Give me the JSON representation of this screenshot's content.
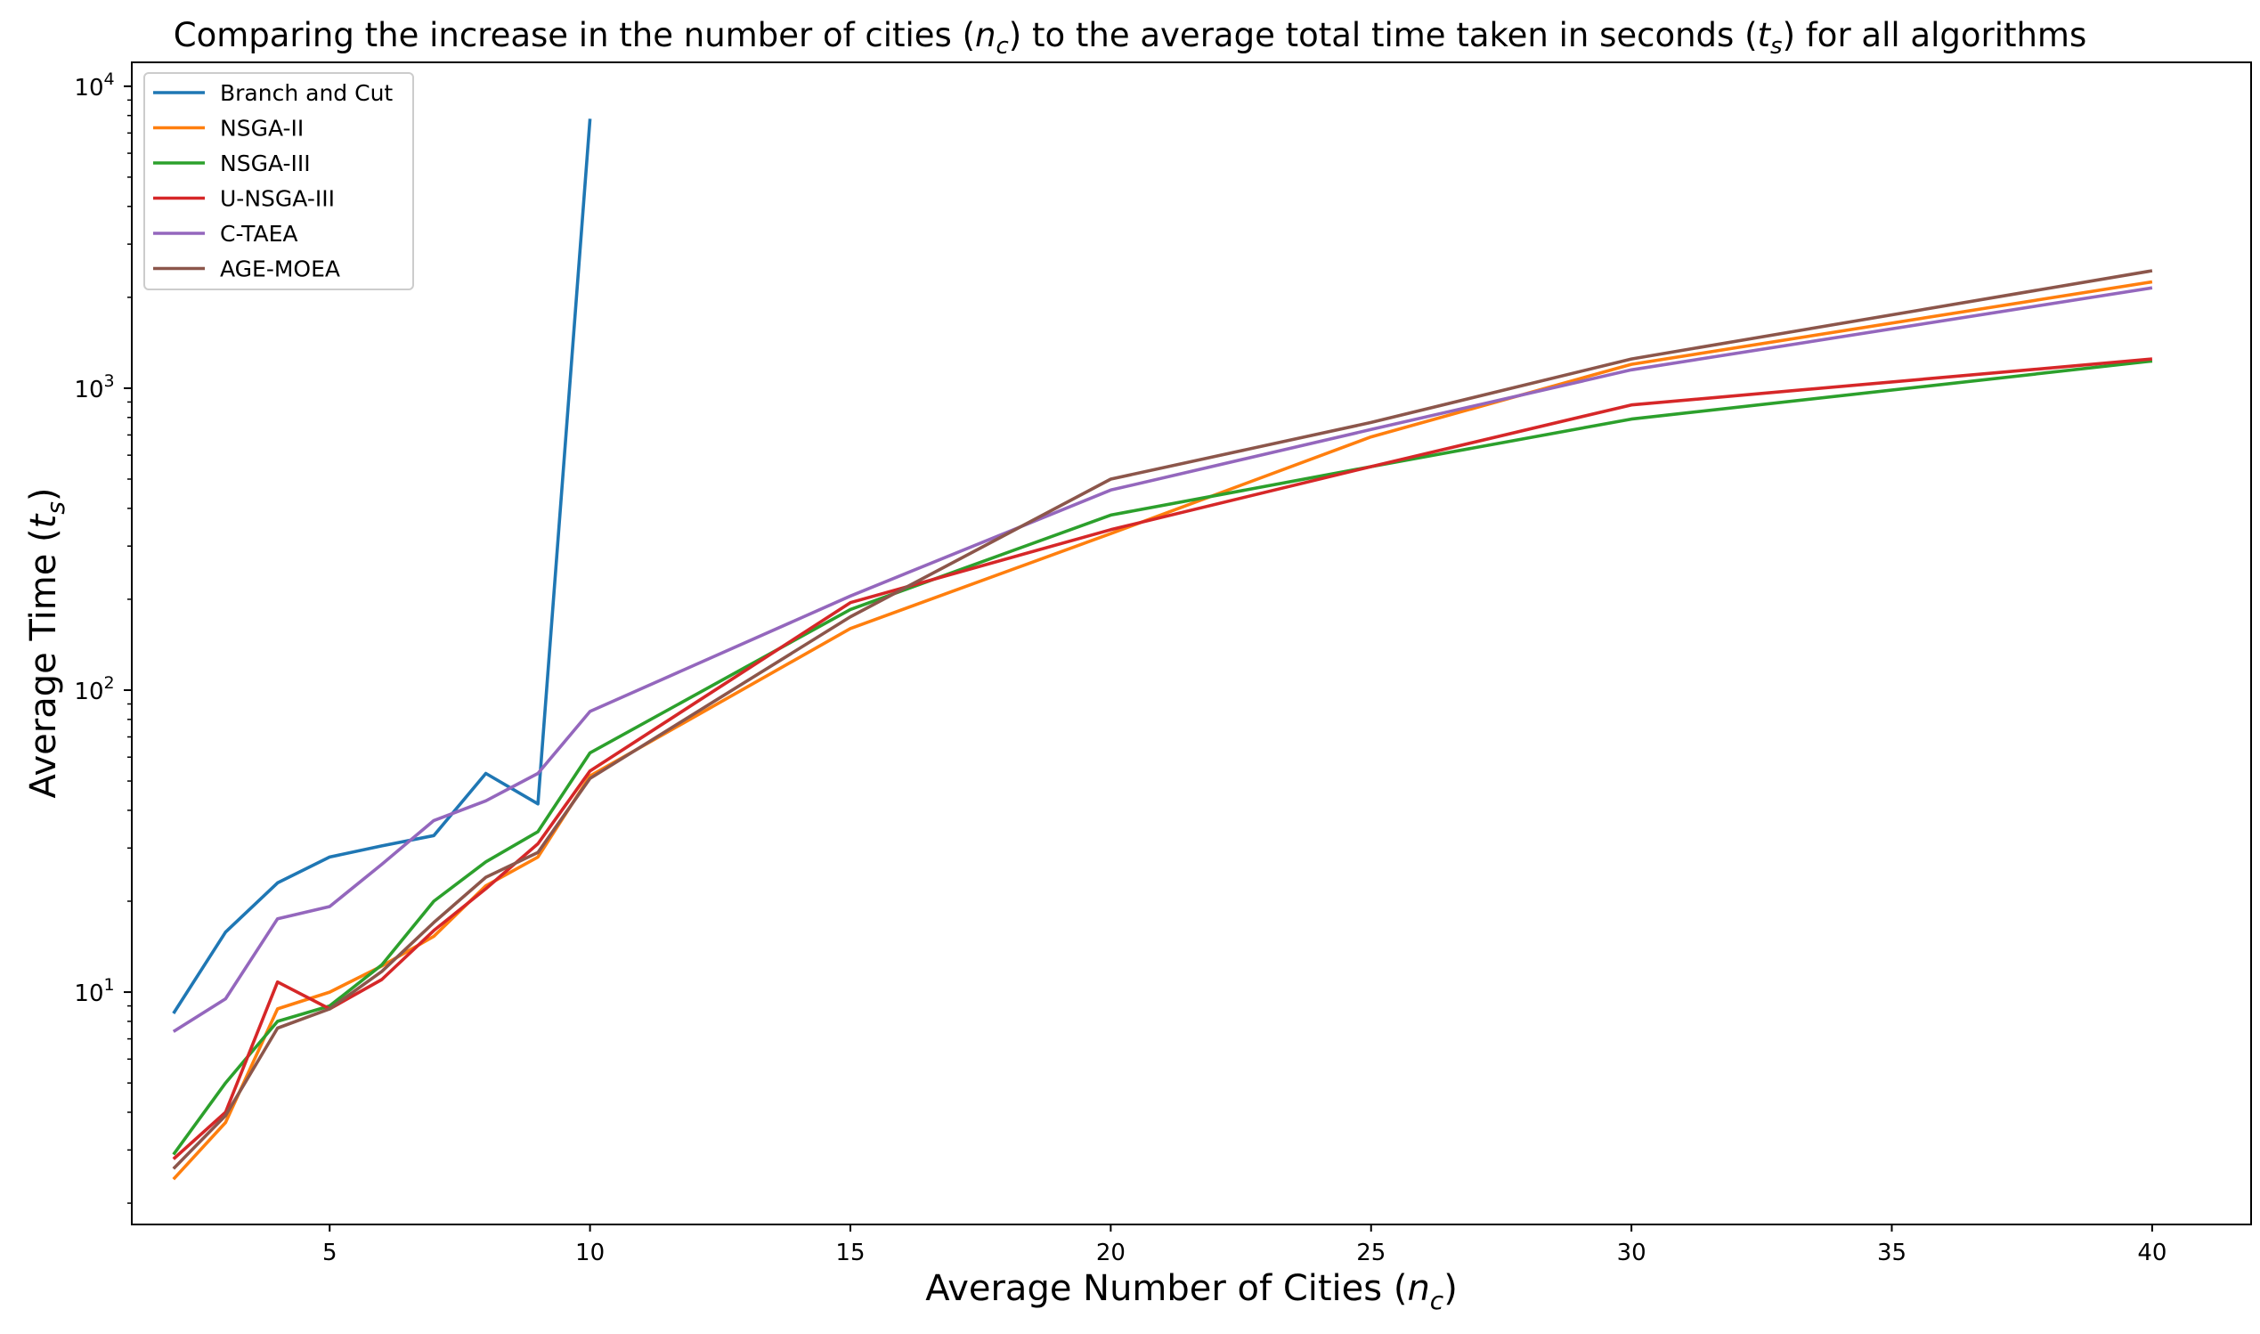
{
  "chart_data": {
    "type": "line",
    "title_parts": [
      "Comparing the increase in the number of cities (",
      "n",
      "c",
      ") to the average total time taken in seconds (",
      "t",
      "s",
      ") for all algorithms"
    ],
    "xlabel_parts": [
      "Average Number of Cities (",
      "n",
      "c",
      ")"
    ],
    "ylabel_parts": [
      "Average Time (",
      "t",
      "s",
      ")"
    ],
    "x_scale": "linear",
    "y_scale": "log",
    "xlim": [
      1.2,
      41.9
    ],
    "ylim": [
      1.7,
      12000
    ],
    "xticks": [
      5,
      10,
      15,
      20,
      25,
      30,
      35,
      40
    ],
    "xtick_labels": [
      "5",
      "10",
      "15",
      "20",
      "25",
      "30",
      "35",
      "40"
    ],
    "ytick_major": [
      10,
      100,
      1000,
      10000
    ],
    "ytick_bases": [
      "10",
      "10",
      "10",
      "10"
    ],
    "ytick_exps": [
      "1",
      "2",
      "3",
      "4"
    ],
    "grid": false,
    "legend_position": "upper-left",
    "series": [
      {
        "name": "Branch and Cut",
        "color": "#1f77b4",
        "x": [
          2,
          3,
          4,
          5,
          6,
          7,
          8,
          9,
          10
        ],
        "values": [
          8.5,
          15.8,
          23,
          28,
          30.5,
          33,
          53,
          42,
          7800
        ]
      },
      {
        "name": "NSGA-II",
        "color": "#ff7f0e",
        "x": [
          2,
          3,
          4,
          5,
          6,
          7,
          8,
          9,
          10,
          15,
          20,
          25,
          30,
          40
        ],
        "values": [
          2.4,
          3.7,
          8.8,
          10,
          12.2,
          15.3,
          22.5,
          28,
          52,
          160,
          330,
          690,
          1200,
          2250
        ]
      },
      {
        "name": "NSGA-III",
        "color": "#2ca02c",
        "x": [
          2,
          3,
          4,
          5,
          6,
          7,
          8,
          9,
          10,
          15,
          20,
          25,
          30,
          40
        ],
        "values": [
          2.9,
          5,
          8,
          9,
          12.3,
          20,
          27,
          34,
          62,
          185,
          380,
          550,
          790,
          1230
        ]
      },
      {
        "name": "U-NSGA-III",
        "color": "#d62728",
        "x": [
          2,
          3,
          4,
          5,
          6,
          7,
          8,
          9,
          10,
          15,
          20,
          25,
          30,
          40
        ],
        "values": [
          2.8,
          4,
          10.8,
          8.8,
          11,
          16,
          22,
          31,
          54,
          195,
          340,
          550,
          880,
          1250
        ]
      },
      {
        "name": "C-TAEA",
        "color": "#9467bd",
        "x": [
          2,
          3,
          4,
          5,
          6,
          7,
          8,
          9,
          10,
          15,
          20,
          25,
          30,
          40
        ],
        "values": [
          7.4,
          9.5,
          17.5,
          19.2,
          26.5,
          37,
          43,
          53,
          85,
          205,
          460,
          730,
          1150,
          2150
        ]
      },
      {
        "name": "AGE-MOEA",
        "color": "#8c564b",
        "x": [
          2,
          3,
          4,
          5,
          6,
          7,
          8,
          9,
          10,
          15,
          20,
          25,
          30,
          40
        ],
        "values": [
          2.6,
          3.9,
          7.6,
          8.8,
          11.7,
          17,
          24,
          29,
          51,
          175,
          500,
          770,
          1250,
          2450
        ]
      }
    ]
  }
}
